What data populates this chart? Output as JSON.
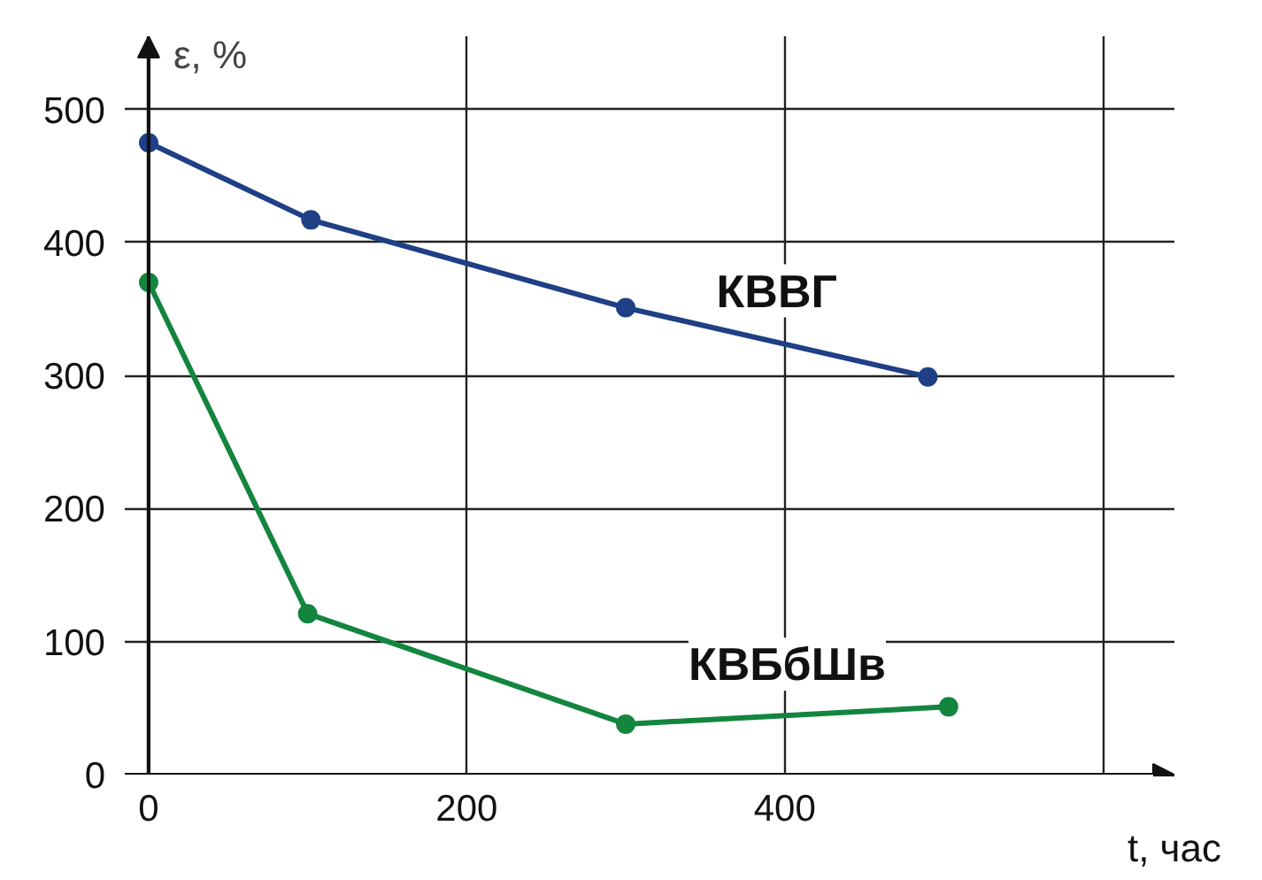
{
  "chart_data": {
    "type": "line",
    "xlabel": "t, час",
    "ylabel": "ε, %",
    "xlim": [
      -15,
      645
    ],
    "ylim": [
      0,
      555
    ],
    "xticks": [
      0,
      200,
      400,
      {
        "value": 600,
        "label": null
      }
    ],
    "yticks": [
      0,
      100,
      200,
      300,
      400,
      500
    ],
    "grid": true,
    "marker": "circle",
    "line_style": "solid",
    "series": [
      {
        "name": "КВВГ",
        "color": "#1f3f86",
        "x": [
          0,
          102,
          300,
          490
        ],
        "values": [
          475,
          417,
          351,
          299
        ]
      },
      {
        "name": "КВБбШв",
        "color": "#13853f",
        "x": [
          0,
          100,
          300,
          503
        ],
        "values": [
          370,
          121,
          38,
          51
        ]
      }
    ]
  }
}
